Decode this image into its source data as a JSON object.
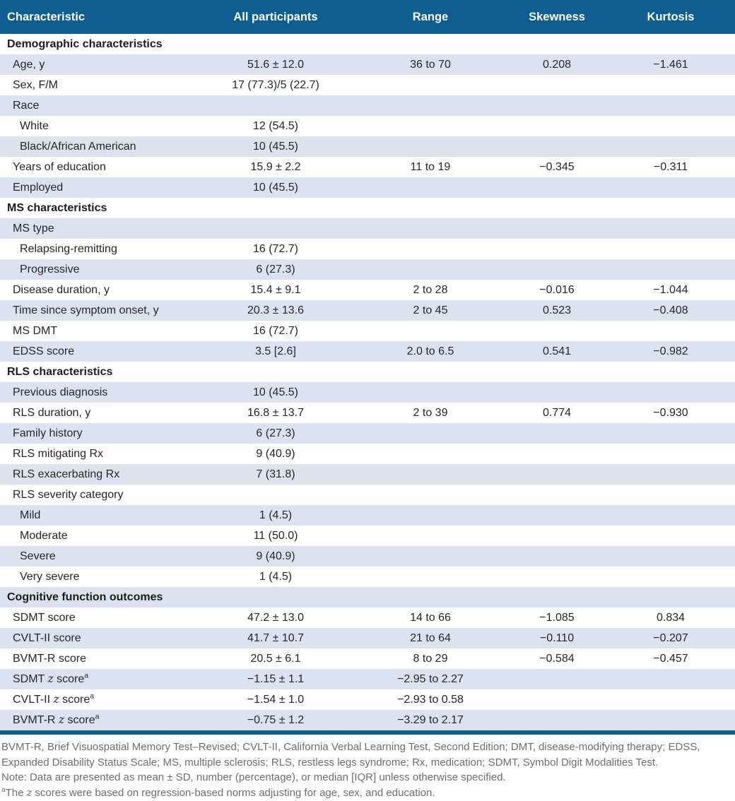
{
  "colors": {
    "header_bg": "#0d5c92",
    "alt_row_bg": "#dce3ef",
    "bottom_rule": "#0d5c92",
    "header_text": "#ffffff",
    "body_text": "#26262a",
    "footer_text": "#6d6e71"
  },
  "table": {
    "columns": [
      "Characteristic",
      "All participants",
      "Range",
      "Skewness",
      "Kurtosis"
    ],
    "rows": [
      {
        "type": "section",
        "label": "Demographic characteristics",
        "values": [
          "",
          "",
          "",
          ""
        ]
      },
      {
        "type": "item",
        "label": "Age, y",
        "values": [
          "51.6 ± 12.0",
          "36 to 70",
          "0.208",
          "−1.461"
        ]
      },
      {
        "type": "item",
        "label": "Sex, F/M",
        "values": [
          "17 (77.3)/5 (22.7)",
          "",
          "",
          ""
        ]
      },
      {
        "type": "item",
        "label": "Race",
        "values": [
          "",
          "",
          "",
          ""
        ]
      },
      {
        "type": "subitem",
        "label": "White",
        "values": [
          "12 (54.5)",
          "",
          "",
          ""
        ]
      },
      {
        "type": "subitem",
        "label": "Black/African American",
        "values": [
          "10 (45.5)",
          "",
          "",
          ""
        ]
      },
      {
        "type": "item",
        "label": "Years of education",
        "values": [
          "15.9 ± 2.2",
          "11 to 19",
          "−0.345",
          "−0.311"
        ]
      },
      {
        "type": "item",
        "label": "Employed",
        "values": [
          "10 (45.5)",
          "",
          "",
          ""
        ]
      },
      {
        "type": "section",
        "label": "MS characteristics",
        "values": [
          "",
          "",
          "",
          ""
        ]
      },
      {
        "type": "item",
        "label": "MS type",
        "values": [
          "",
          "",
          "",
          ""
        ]
      },
      {
        "type": "subitem",
        "label": "Relapsing-remitting",
        "values": [
          "16 (72.7)",
          "",
          "",
          ""
        ]
      },
      {
        "type": "subitem",
        "label": "Progressive",
        "values": [
          "6 (27.3)",
          "",
          "",
          ""
        ]
      },
      {
        "type": "item",
        "label": "Disease duration, y",
        "values": [
          "15.4 ± 9.1",
          "2 to 28",
          "−0.016",
          "−1.044"
        ]
      },
      {
        "type": "item",
        "label": "Time since symptom onset, y",
        "values": [
          "20.3 ± 13.6",
          "2 to 45",
          "0.523",
          "−0.408"
        ]
      },
      {
        "type": "item",
        "label": "MS DMT",
        "values": [
          "16 (72.7)",
          "",
          "",
          ""
        ]
      },
      {
        "type": "item",
        "label": "EDSS score",
        "values": [
          "3.5 [2.6]",
          "2.0 to 6.5",
          "0.541",
          "−0.982"
        ]
      },
      {
        "type": "section",
        "label": "RLS characteristics",
        "values": [
          "",
          "",
          "",
          ""
        ]
      },
      {
        "type": "item",
        "label": "Previous diagnosis",
        "values": [
          "10 (45.5)",
          "",
          "",
          ""
        ]
      },
      {
        "type": "item",
        "label": "RLS duration, y",
        "values": [
          "16.8 ± 13.7",
          "2 to 39",
          "0.774",
          "−0.930"
        ]
      },
      {
        "type": "item",
        "label": "Family history",
        "values": [
          "6 (27.3)",
          "",
          "",
          ""
        ]
      },
      {
        "type": "item",
        "label": "RLS mitigating Rx",
        "values": [
          "9 (40.9)",
          "",
          "",
          ""
        ]
      },
      {
        "type": "item",
        "label": "RLS exacerbating Rx",
        "values": [
          "7 (31.8)",
          "",
          "",
          ""
        ]
      },
      {
        "type": "item",
        "label": "RLS severity category",
        "values": [
          "",
          "",
          "",
          ""
        ]
      },
      {
        "type": "subitem",
        "label": "Mild",
        "values": [
          "1 (4.5)",
          "",
          "",
          ""
        ]
      },
      {
        "type": "subitem",
        "label": "Moderate",
        "values": [
          "11 (50.0)",
          "",
          "",
          ""
        ]
      },
      {
        "type": "subitem",
        "label": "Severe",
        "values": [
          "9 (40.9)",
          "",
          "",
          ""
        ]
      },
      {
        "type": "subitem",
        "label": "Very severe",
        "values": [
          "1 (4.5)",
          "",
          "",
          ""
        ]
      },
      {
        "type": "section",
        "label": "Cognitive function outcomes",
        "values": [
          "",
          "",
          "",
          ""
        ]
      },
      {
        "type": "item",
        "label": "SDMT score",
        "values": [
          "47.2 ± 13.0",
          "14 to 66",
          "−1.085",
          "0.834"
        ]
      },
      {
        "type": "item",
        "label": "CVLT-II score",
        "values": [
          "41.7 ± 10.7",
          "21 to 64",
          "−0.110",
          "−0.207"
        ]
      },
      {
        "type": "item",
        "label": "BVMT-R score",
        "values": [
          "20.5 ± 6.1",
          "8 to 29",
          "−0.584",
          "−0.457"
        ]
      },
      {
        "type": "item",
        "parts": [
          {
            "t": "SDMT "
          },
          {
            "t": "z",
            "s": "z"
          },
          {
            "t": " score"
          },
          {
            "t": "a",
            "s": "sup"
          }
        ],
        "values": [
          "−1.15 ± 1.1",
          "−2.95 to 2.27",
          "",
          ""
        ]
      },
      {
        "type": "item",
        "parts": [
          {
            "t": "CVLT-II "
          },
          {
            "t": "z",
            "s": "z"
          },
          {
            "t": " score"
          },
          {
            "t": "a",
            "s": "sup"
          }
        ],
        "values": [
          "−1.54 ± 1.0",
          "−2.93 to 0.58",
          "",
          ""
        ]
      },
      {
        "type": "item",
        "parts": [
          {
            "t": "BVMT-R "
          },
          {
            "t": "z",
            "s": "z"
          },
          {
            "t": " score"
          },
          {
            "t": "a",
            "s": "sup"
          }
        ],
        "values": [
          "−0.75 ± 1.2",
          "−3.29 to 2.17",
          "",
          ""
        ]
      }
    ]
  },
  "footer": {
    "abbreviations": "BVMT-R, Brief Visuospatial Memory Test–Revised; CVLT-II, California Verbal Learning Test, Second Edition; DMT, disease-modifying therapy; EDSS, Expanded Disability Status Scale; MS, multiple sclerosis; RLS, restless legs syndrome; Rx, medication; SDMT, Symbol Digit Modalities Test.",
    "note": "Note: Data are presented as mean ± SD, number (percentage), or median [IQR] unless otherwise specified.",
    "footnote_a": {
      "marker": "a",
      "pre": "The ",
      "z": "z",
      "post": " scores were based on regression-based norms adjusting for age, sex, and education."
    }
  }
}
